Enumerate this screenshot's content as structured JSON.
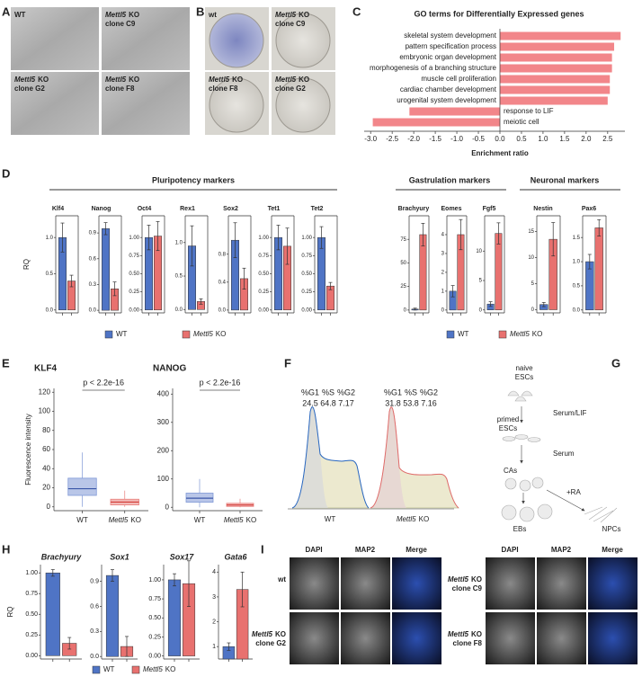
{
  "panel_letters": [
    "A",
    "B",
    "C",
    "D",
    "E",
    "F",
    "G",
    "H",
    "I"
  ],
  "panel_a": {
    "labels": [
      {
        "text": "WT"
      },
      {
        "gene": "Mettl5",
        "text": "KO",
        "line2": "clone C9"
      },
      {
        "gene": "Mettl5",
        "text": "KO",
        "line2": "clone G2"
      },
      {
        "gene": "Mettl5",
        "text": "KO",
        "line2": "clone F8"
      }
    ]
  },
  "panel_b": {
    "labels": [
      {
        "text": "wt"
      },
      {
        "gene": "Mettl5",
        "text": "KO",
        "line2": "clone C9"
      },
      {
        "gene": "Mettl5",
        "text": "KO",
        "line2": "clone F8"
      },
      {
        "gene": "Mettl5",
        "text": "KO",
        "line2": "clone G2"
      }
    ]
  },
  "panel_d": {
    "groups": [
      "Pluripotency markers",
      "Gastrulation markers",
      "Neuronal markers"
    ]
  },
  "legend": [
    {
      "text": "WT",
      "color": "#4f74c5"
    },
    {
      "gene": "Mettl5",
      "text": "KO",
      "color": "#e8716f"
    }
  ],
  "panel_f": {
    "headers": [
      "%G1",
      "%S",
      "%G2"
    ],
    "samples": [
      {
        "values": [
          24.5,
          64.8,
          7.17
        ],
        "label": {
          "text": "WT"
        }
      },
      {
        "values": [
          31.8,
          53.8,
          7.16
        ],
        "label": {
          "gene": "Mettl5",
          "text": "KO"
        }
      }
    ]
  },
  "panel_g": {
    "naive": [
      "naive",
      "ESCs"
    ],
    "serum_lif": "Serum/LIF",
    "primed": [
      "primed",
      "ESCs"
    ],
    "serum": "Serum",
    "cas": "CAs",
    "ra": "+RA",
    "ebs": "EBs",
    "npcs": "NPCs"
  },
  "panel_i": {
    "channels": [
      "DAPI",
      "MAP2",
      "Merge"
    ],
    "groups": [
      {
        "rows": [
          {
            "text": "wt"
          },
          {
            "gene": "Mettl5",
            "text": "KO",
            "line2": "clone G2"
          }
        ]
      },
      {
        "rows": [
          {
            "gene": "Mettl5",
            "text": "KO",
            "line2": "clone C9"
          },
          {
            "gene": "Mettl5",
            "text": "KO",
            "line2": "clone F8"
          }
        ]
      }
    ]
  },
  "chart_data": [
    {
      "type": "barh",
      "title": "GO terms for Differentially Expressed genes",
      "categories": [
        "skeletal system development",
        "pattern specification process",
        "embryonic organ development",
        "morphogenesis of a branching structure",
        "muscle cell proliferation",
        "cardiac chamber development",
        "urogenital system development",
        "response to LIF",
        "meiotic cell"
      ],
      "values": [
        2.8,
        2.65,
        2.6,
        2.6,
        2.55,
        2.55,
        2.5,
        -2.1,
        -2.95
      ],
      "color": "#f2868a",
      "xlabel": "Enrichment ratio",
      "xlim": [
        -3.15,
        2.9
      ],
      "xticks": [
        {
          "value": -3,
          "label": "-3.0"
        },
        -2.5,
        {
          "value": -2,
          "label": "-2.0"
        },
        -1.5,
        {
          "value": -1,
          "label": "-1.0"
        },
        -0.5,
        {
          "value": 0,
          "label": "0.0"
        },
        0.5,
        {
          "value": 1,
          "label": "1.0"
        },
        1.5,
        {
          "value": 2,
          "label": "2.0"
        },
        2.5
      ]
    },
    {
      "type": "bar",
      "title": "Klf4",
      "ylabel": "RQ",
      "categories": [
        null,
        null
      ],
      "values": [
        1.0,
        0.4
      ],
      "errors": [
        0.2,
        0.08
      ],
      "colors": [
        "#4f74c5",
        "#e8716f"
      ],
      "ylim": [
        -0.04,
        1.3
      ],
      "yticks": [
        {
          "value": 0,
          "label": "0.0"
        },
        0.5,
        {
          "value": 1,
          "label": "1.0"
        }
      ]
    },
    {
      "type": "bar",
      "title": "Nanog",
      "categories": [
        null,
        null
      ],
      "values": [
        0.95,
        0.25
      ],
      "errors": [
        0.07,
        0.08
      ],
      "colors": [
        "#4f74c5",
        "#e8716f"
      ],
      "ylim": [
        -0.03,
        1.1
      ],
      "yticks": [
        {
          "value": 0,
          "label": "0.0"
        },
        0.3,
        0.6,
        0.9
      ]
    },
    {
      "type": "bar",
      "title": "Oct4",
      "categories": [
        null,
        null
      ],
      "values": [
        1.0,
        1.02
      ],
      "errors": [
        0.17,
        0.2
      ],
      "colors": [
        "#4f74c5",
        "#e8716f"
      ],
      "ylim": [
        -0.04,
        1.3
      ],
      "yticks": [
        {
          "value": 0,
          "label": "0.00"
        },
        0.25,
        {
          "value": 0.5,
          "label": "0.50"
        },
        0.75,
        {
          "value": 1,
          "label": "1.00"
        }
      ]
    },
    {
      "type": "bar",
      "title": "Rex1",
      "categories": [
        null,
        null
      ],
      "values": [
        0.95,
        0.12
      ],
      "errors": [
        0.3,
        0.04
      ],
      "colors": [
        "#4f74c5",
        "#e8716f"
      ],
      "ylim": [
        -0.05,
        1.4
      ],
      "yticks": [
        {
          "value": 0,
          "label": "0.0"
        },
        0.5,
        {
          "value": 1,
          "label": "1.0"
        }
      ]
    },
    {
      "type": "bar",
      "title": "Sox2",
      "categories": [
        null,
        null
      ],
      "values": [
        1.0,
        0.45
      ],
      "errors": [
        0.25,
        0.15
      ],
      "colors": [
        "#4f74c5",
        "#e8716f"
      ],
      "ylim": [
        -0.04,
        1.35
      ],
      "yticks": [
        {
          "value": 0,
          "label": "0.0"
        },
        0.4,
        0.8
      ]
    },
    {
      "type": "bar",
      "title": "Tet1",
      "categories": [
        null,
        null
      ],
      "values": [
        1.0,
        0.88
      ],
      "errors": [
        0.17,
        0.25
      ],
      "colors": [
        "#4f74c5",
        "#e8716f"
      ],
      "ylim": [
        -0.04,
        1.3
      ],
      "yticks": [
        {
          "value": 0,
          "label": "0.00"
        },
        0.25,
        {
          "value": 0.5,
          "label": "0.50"
        },
        0.75,
        {
          "value": 1,
          "label": "1.00"
        }
      ]
    },
    {
      "type": "bar",
      "title": "Tet2",
      "categories": [
        null,
        null
      ],
      "values": [
        1.0,
        0.33
      ],
      "errors": [
        0.15,
        0.05
      ],
      "colors": [
        "#4f74c5",
        "#e8716f"
      ],
      "ylim": [
        -0.04,
        1.3
      ],
      "yticks": [
        {
          "value": 0,
          "label": "0.00"
        },
        0.25,
        {
          "value": 0.5,
          "label": "0.50"
        },
        0.75,
        {
          "value": 1,
          "label": "1.00"
        }
      ]
    },
    {
      "type": "bar",
      "title": "Brachyury",
      "categories": [
        null,
        null
      ],
      "values": [
        1,
        80
      ],
      "errors": [
        1,
        12
      ],
      "colors": [
        "#4f74c5",
        "#e8716f"
      ],
      "ylim": [
        -3,
        100
      ],
      "yticks": [
        0,
        25,
        50,
        75
      ]
    },
    {
      "type": "bar",
      "title": "Eomes",
      "categories": [
        null,
        null
      ],
      "values": [
        1.0,
        4.0
      ],
      "errors": [
        0.3,
        0.8
      ],
      "colors": [
        "#4f74c5",
        "#e8716f"
      ],
      "ylim": [
        -0.15,
        5
      ],
      "yticks": [
        0,
        1,
        2,
        3,
        4
      ]
    },
    {
      "type": "bar",
      "title": "Fgf5",
      "categories": [
        null,
        null
      ],
      "values": [
        1,
        13
      ],
      "errors": [
        0.4,
        1.8
      ],
      "colors": [
        "#4f74c5",
        "#e8716f"
      ],
      "ylim": [
        -0.5,
        16
      ],
      "yticks": [
        0,
        5,
        10
      ]
    },
    {
      "type": "bar",
      "title": "Nestin",
      "categories": [
        null,
        null
      ],
      "values": [
        1,
        13.5
      ],
      "errors": [
        0.4,
        3.2
      ],
      "colors": [
        "#4f74c5",
        "#e8716f"
      ],
      "ylim": [
        -0.6,
        18
      ],
      "yticks": [
        0,
        5,
        10,
        15
      ]
    },
    {
      "type": "bar",
      "title": "Pax6",
      "categories": [
        null,
        null
      ],
      "values": [
        1.0,
        1.7
      ],
      "errors": [
        0.15,
        0.17
      ],
      "colors": [
        "#4f74c5",
        "#e8716f"
      ],
      "ylim": [
        -0.06,
        1.95
      ],
      "yticks": [
        {
          "value": 0,
          "label": "0.0"
        },
        0.5,
        {
          "value": 1,
          "label": "1.0"
        },
        1.5
      ]
    },
    {
      "type": "box",
      "title": "KLF4",
      "ylabel": "Fluorescence intensity",
      "annotation": "p < 2.2e-16",
      "categories": [
        {
          "text": "WT"
        },
        {
          "gene": "Mettl5",
          "text": "KO"
        }
      ],
      "boxes": [
        {
          "whislo": 0,
          "q1": 12,
          "med": 19,
          "q3": 30,
          "whishi": 57
        },
        {
          "whislo": 0,
          "q1": 2,
          "med": 5,
          "q3": 8,
          "whishi": 17
        }
      ],
      "colors": [
        "#7f98d6",
        "#e87f7c"
      ],
      "ylim": [
        -4,
        124
      ],
      "yticks": [
        0,
        20,
        40,
        60,
        80,
        100,
        120
      ]
    },
    {
      "type": "box",
      "title": "NANOG",
      "annotation": "p < 2.2e-16",
      "categories": [
        {
          "text": "WT"
        },
        {
          "gene": "Mettl5",
          "text": "KO"
        }
      ],
      "boxes": [
        {
          "whislo": 0,
          "q1": 18,
          "med": 32,
          "q3": 50,
          "whishi": 100
        },
        {
          "whislo": 0,
          "q1": 3,
          "med": 8,
          "q3": 14,
          "whishi": 30
        }
      ],
      "colors": [
        "#7f98d6",
        "#e87f7c"
      ],
      "ylim": [
        -12,
        420
      ],
      "yticks": [
        0,
        100,
        200,
        300,
        400
      ]
    },
    {
      "type": "bar",
      "title": "Brachyury",
      "ylabel": "RQ",
      "categories": [
        null,
        null
      ],
      "values": [
        1.0,
        0.15
      ],
      "errors": [
        0.04,
        0.07
      ],
      "colors": [
        "#4f74c5",
        "#e8716f"
      ],
      "ylim": [
        -0.04,
        1.1
      ],
      "yticks": [
        {
          "value": 0,
          "label": "0.00"
        },
        0.25,
        {
          "value": 0.5,
          "label": "0.50"
        },
        0.75,
        {
          "value": 1,
          "label": "1.00"
        }
      ]
    },
    {
      "type": "bar",
      "title": "Sox1",
      "categories": [
        null,
        null
      ],
      "values": [
        0.97,
        0.12
      ],
      "errors": [
        0.07,
        0.12
      ],
      "colors": [
        "#4f74c5",
        "#e8716f"
      ],
      "ylim": [
        -0.03,
        1.1
      ],
      "yticks": [
        {
          "value": 0,
          "label": "0.0"
        },
        0.3,
        0.6,
        0.9
      ]
    },
    {
      "type": "bar",
      "title": "Sox17",
      "categories": [
        null,
        null
      ],
      "values": [
        1.0,
        0.95
      ],
      "errors": [
        0.08,
        0.3
      ],
      "colors": [
        "#4f74c5",
        "#e8716f"
      ],
      "ylim": [
        -0.04,
        1.2
      ],
      "yticks": [
        {
          "value": 0,
          "label": "0.00"
        },
        0.25,
        {
          "value": 0.5,
          "label": "0.50"
        },
        0.75,
        {
          "value": 1,
          "label": "1.00"
        }
      ]
    },
    {
      "type": "bar",
      "title": "Gata6",
      "categories": [
        null,
        null
      ],
      "values": [
        1.0,
        3.3
      ],
      "errors": [
        0.15,
        0.7
      ],
      "colors": [
        "#4f74c5",
        "#e8716f"
      ],
      "ylim": [
        0.5,
        4.3
      ],
      "yticks": [
        1,
        2,
        3,
        4
      ]
    }
  ]
}
